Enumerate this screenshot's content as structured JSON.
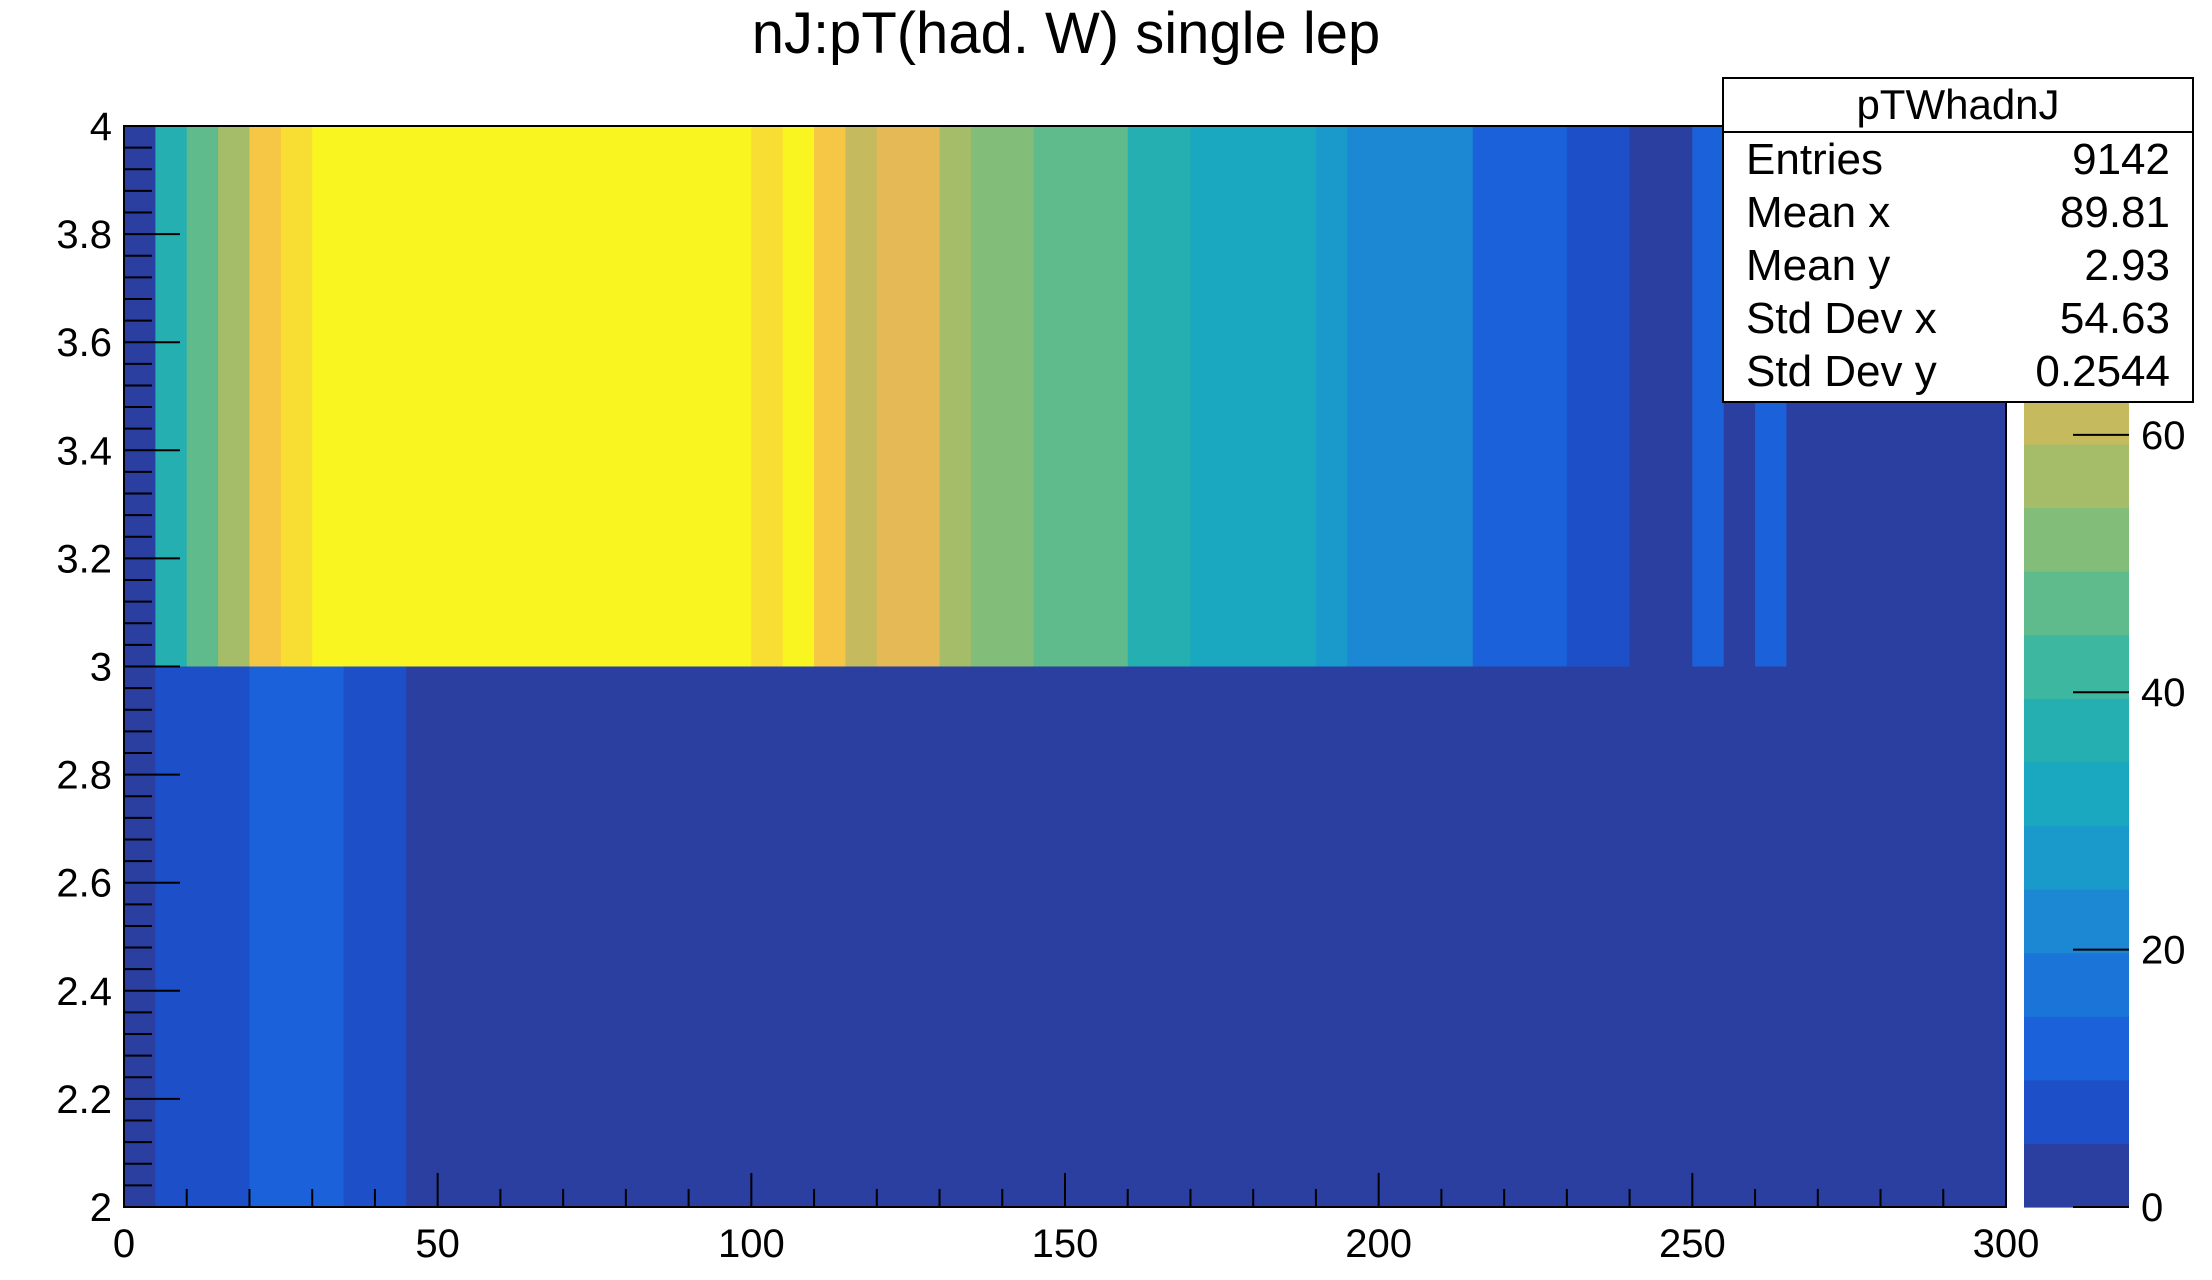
{
  "colors": {
    "palette": [
      "#2a3fa0",
      "#1d4fc8",
      "#1b62da",
      "#1b74d7",
      "#1c87d3",
      "#1a9acb",
      "#1aa7c0",
      "#25afb0",
      "#3db79f",
      "#5fbb8c",
      "#82bd7a",
      "#a5bd69",
      "#c6ba5e",
      "#e5b956",
      "#f5c744",
      "#f8dd32",
      "#f8f521"
    ]
  },
  "stats": {
    "title": "pTWhadnJ",
    "rows": [
      {
        "label": "Entries",
        "value": "9142"
      },
      {
        "label": "Mean x",
        "value": "89.81"
      },
      {
        "label": "Mean y",
        "value": "2.93"
      },
      {
        "label": "Std Dev x",
        "value": "54.63"
      },
      {
        "label": "Std Dev y",
        "value": "0.2544"
      }
    ]
  },
  "chart_data": {
    "type": "heatmap",
    "title": "nJ:pT(had. W) single lep",
    "xlabel": "",
    "ylabel": "",
    "xlim": [
      0,
      300
    ],
    "ylim": [
      2,
      4
    ],
    "zlim": [
      0,
      84
    ],
    "x_ticks": [
      0,
      50,
      100,
      150,
      200,
      250,
      300
    ],
    "y_ticks": [
      2,
      2.2,
      2.4,
      2.6,
      2.8,
      3,
      3.2,
      3.4,
      3.6,
      3.8,
      4
    ],
    "y_tick_labels": [
      "2",
      "2.2",
      "2.4",
      "2.6",
      "2.8",
      "3",
      "3.2",
      "3.4",
      "3.6",
      "3.8",
      "4"
    ],
    "z_ticks": [
      0,
      20,
      40,
      60
    ],
    "x_bin_width": 5,
    "y_bins": [
      [
        2,
        3
      ],
      [
        3,
        4
      ]
    ],
    "counts": [
      [
        1,
        7,
        7,
        7,
        13,
        13,
        13,
        7,
        7,
        3,
        3,
        3,
        3,
        3,
        3,
        3,
        3,
        3,
        3,
        3,
        3,
        3,
        3,
        3,
        3,
        3,
        3,
        3,
        3,
        3,
        3,
        3,
        3,
        3,
        3,
        3,
        3,
        3,
        3,
        3,
        3,
        3,
        3,
        3,
        3,
        3,
        3,
        3,
        3,
        3,
        3,
        3,
        3,
        3,
        3,
        3,
        3,
        3,
        3,
        3
      ],
      [
        0,
        35,
        48,
        59,
        70,
        77,
        80,
        82,
        92,
        88,
        92,
        88,
        82,
        88,
        92,
        88,
        84,
        84,
        84,
        82,
        78,
        80,
        74,
        62,
        66,
        66,
        56,
        52,
        52,
        48,
        48,
        48,
        38,
        38,
        30,
        30,
        30,
        30,
        26,
        24,
        22,
        22,
        20,
        14,
        14,
        12,
        8,
        8,
        0,
        0,
        11,
        0,
        11,
        1,
        1,
        0,
        0,
        0,
        0,
        0
      ]
    ]
  }
}
